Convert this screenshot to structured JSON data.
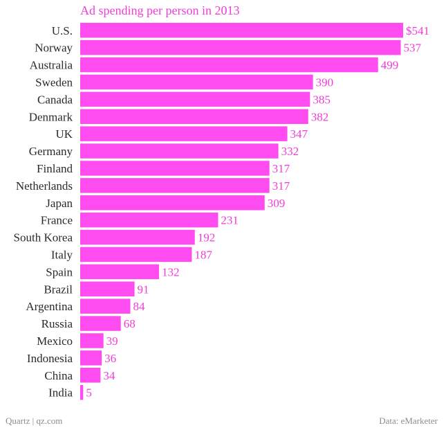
{
  "chart_data": {
    "type": "bar",
    "orientation": "horizontal",
    "title": "Ad spending per person in 2013",
    "categories": [
      "U.S.",
      "Norway",
      "Australia",
      "Sweden",
      "Canada",
      "Denmark",
      "UK",
      "Germany",
      "Finland",
      "Netherlands",
      "Japan",
      "France",
      "South Korea",
      "Italy",
      "Spain",
      "Brazil",
      "Argentina",
      "Russia",
      "Mexico",
      "Indonesia",
      "China",
      "India"
    ],
    "values": [
      541,
      537,
      499,
      390,
      385,
      382,
      347,
      332,
      317,
      317,
      309,
      231,
      192,
      187,
      132,
      91,
      84,
      68,
      39,
      36,
      34,
      5
    ],
    "value_labels": [
      "$541",
      "537",
      "499",
      "390",
      "385",
      "382",
      "347",
      "332",
      "317",
      "317",
      "309",
      "231",
      "192",
      "187",
      "132",
      "91",
      "84",
      "68",
      "39",
      "36",
      "34",
      "5"
    ],
    "xlim": [
      0,
      541
    ],
    "grid": false,
    "legend": "none",
    "bar_color": "#ff4cf0",
    "label_color": "#f03cd8"
  },
  "footer": {
    "left": "Quartz | qz.com",
    "right": "Data: eMarketer"
  }
}
